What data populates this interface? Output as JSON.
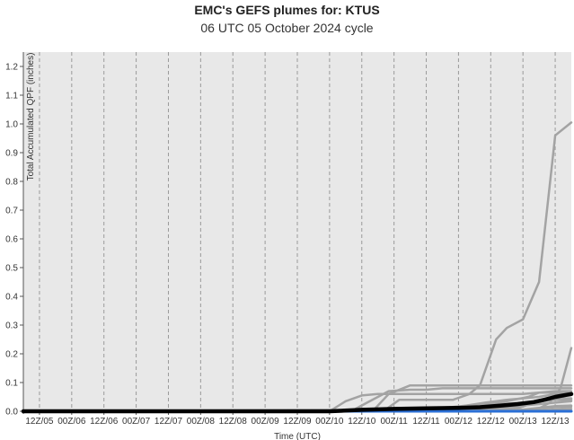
{
  "chart_data": {
    "type": "line",
    "title": "EMC's GEFS plumes for: KTUS",
    "subtitle": "06 UTC 05 October 2024 cycle",
    "xlabel": "Time (UTC)",
    "ylabel": "Total Accumulated QPF (inches)",
    "ylim": [
      0,
      1.25
    ],
    "yticks": [
      "0.0",
      "0.1",
      "0.2",
      "0.3",
      "0.4",
      "0.5",
      "0.6",
      "0.7",
      "0.8",
      "0.9",
      "1.0",
      "1.1",
      "1.2"
    ],
    "x_hours_range": [
      0,
      204
    ],
    "xtick_hours": [
      6,
      18,
      30,
      42,
      54,
      66,
      78,
      90,
      102,
      114,
      126,
      138,
      150,
      162,
      174,
      186,
      198
    ],
    "xtick_labels": [
      "12Z/05",
      "00Z/06",
      "12Z/06",
      "00Z/07",
      "12Z/07",
      "00Z/08",
      "12Z/08",
      "00Z/09",
      "12Z/09",
      "00Z/10",
      "12Z/10",
      "00Z/11",
      "12Z/11",
      "00Z/12",
      "12Z/12",
      "00Z/13",
      "12Z/13"
    ],
    "gridlines": true,
    "colors": {
      "members": "#a3a3a3",
      "mean": "#000000",
      "control": "#2a6fd6",
      "panel": "#e8e8e8",
      "grid": "#9a9a9a"
    },
    "series": [
      {
        "role": "member",
        "x": [
          0,
          114,
          120,
          126,
          132,
          138,
          144,
          150,
          156,
          162,
          168,
          174,
          180,
          186,
          192,
          198,
          204
        ],
        "values": [
          0,
          0,
          0.035,
          0.055,
          0.06,
          0.06,
          0.06,
          0.06,
          0.06,
          0.06,
          0.06,
          0.06,
          0.06,
          0.06,
          0.065,
          0.065,
          0.065
        ]
      },
      {
        "role": "member",
        "x": [
          0,
          122,
          128,
          132,
          136,
          144,
          150,
          156,
          162,
          168,
          174,
          180,
          186,
          192,
          198,
          204
        ],
        "values": [
          0,
          0,
          0.03,
          0.05,
          0.07,
          0.075,
          0.075,
          0.08,
          0.08,
          0.08,
          0.08,
          0.08,
          0.08,
          0.08,
          0.08,
          0.08
        ]
      },
      {
        "role": "member",
        "x": [
          0,
          130,
          136,
          144,
          150,
          156,
          162,
          168,
          174,
          180,
          186,
          192,
          198,
          204
        ],
        "values": [
          0,
          0,
          0.06,
          0.09,
          0.09,
          0.09,
          0.09,
          0.09,
          0.09,
          0.09,
          0.09,
          0.09,
          0.09,
          0.09
        ]
      },
      {
        "role": "member",
        "x": [
          0,
          134,
          140,
          150,
          160,
          166,
          170,
          176,
          180,
          186,
          192,
          198,
          204
        ],
        "values": [
          0,
          0,
          0.04,
          0.04,
          0.04,
          0.06,
          0.09,
          0.25,
          0.29,
          0.32,
          0.45,
          0.96,
          1.005
        ]
      },
      {
        "role": "member",
        "x": [
          0,
          188,
          192,
          196,
          200,
          204
        ],
        "values": [
          0,
          0,
          0.01,
          0.03,
          0.08,
          0.22
        ]
      },
      {
        "role": "member",
        "x": [
          0,
          140,
          150,
          160,
          170,
          180,
          188,
          192,
          198,
          204
        ],
        "values": [
          0,
          0.005,
          0.01,
          0.015,
          0.02,
          0.035,
          0.05,
          0.065,
          0.07,
          0.07
        ]
      },
      {
        "role": "member",
        "x": [
          0,
          145,
          155,
          165,
          172,
          180,
          186,
          192,
          198,
          204
        ],
        "values": [
          0,
          0,
          0.01,
          0.02,
          0.03,
          0.04,
          0.045,
          0.05,
          0.06,
          0.065
        ]
      },
      {
        "role": "member",
        "x": [
          0,
          150,
          160,
          170,
          178,
          186,
          192,
          198,
          204
        ],
        "values": [
          0,
          0,
          0.01,
          0.015,
          0.025,
          0.03,
          0.035,
          0.04,
          0.04
        ]
      },
      {
        "role": "member",
        "x": [
          0,
          160,
          170,
          178,
          186,
          192,
          198,
          204
        ],
        "values": [
          0,
          0,
          0.005,
          0.01,
          0.02,
          0.025,
          0.03,
          0.035
        ]
      },
      {
        "role": "member",
        "x": [
          0,
          168,
          176,
          184,
          190,
          196,
          200,
          204
        ],
        "values": [
          0,
          0,
          0.005,
          0.01,
          0.03,
          0.04,
          0.045,
          0.045
        ]
      },
      {
        "role": "member",
        "x": [
          0,
          170,
          178,
          186,
          192,
          198,
          204
        ],
        "values": [
          0,
          0,
          0.002,
          0.006,
          0.012,
          0.018,
          0.02
        ]
      },
      {
        "role": "member",
        "x": [
          0,
          180,
          186,
          192,
          198,
          204
        ],
        "values": [
          0,
          0,
          0.004,
          0.01,
          0.014,
          0.016
        ]
      },
      {
        "role": "member",
        "x": [
          0,
          186,
          192,
          198,
          204
        ],
        "values": [
          0,
          0,
          0.003,
          0.006,
          0.008
        ]
      },
      {
        "role": "member",
        "x": [
          0,
          204
        ],
        "values": [
          0,
          0
        ]
      },
      {
        "role": "mean",
        "x": [
          0,
          114,
          126,
          138,
          150,
          162,
          170,
          178,
          184,
          190,
          194,
          198,
          202,
          204
        ],
        "values": [
          0,
          0,
          0.005,
          0.008,
          0.01,
          0.012,
          0.014,
          0.02,
          0.025,
          0.032,
          0.04,
          0.05,
          0.057,
          0.06
        ]
      },
      {
        "role": "control",
        "x": [
          0,
          204
        ],
        "values": [
          0,
          0
        ]
      }
    ]
  }
}
